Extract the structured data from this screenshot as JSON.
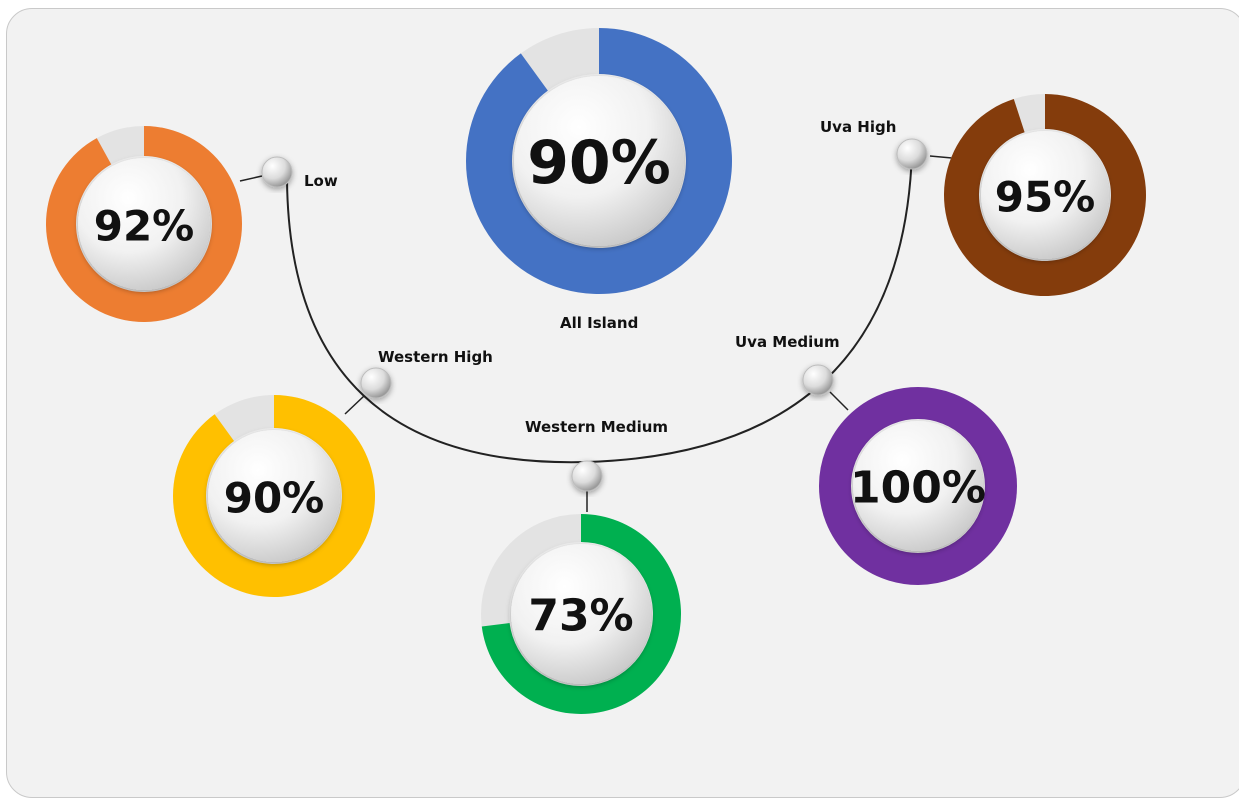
{
  "chart_data": {
    "type": "pie",
    "style": "donut",
    "series": [
      {
        "key": "all_island",
        "name": "All Island",
        "value": 90,
        "display": "90%",
        "color": "#4472c4"
      },
      {
        "key": "low",
        "name": "Low",
        "value": 92,
        "display": "92%",
        "color": "#ed7d31"
      },
      {
        "key": "uva_high",
        "name": "Uva High",
        "value": 95,
        "display": "95%",
        "color": "#843c0c"
      },
      {
        "key": "western_high",
        "name": "Western High",
        "value": 90,
        "display": "90%",
        "color": "#ffc000"
      },
      {
        "key": "western_medium",
        "name": "Western Medium",
        "value": 73,
        "display": "73%",
        "color": "#00b050"
      },
      {
        "key": "uva_medium",
        "name": "Uva Medium",
        "value": 100,
        "display": "100%",
        "color": "#7030a0"
      }
    ],
    "remainder_color": "#e3e3e3",
    "max": 100
  }
}
